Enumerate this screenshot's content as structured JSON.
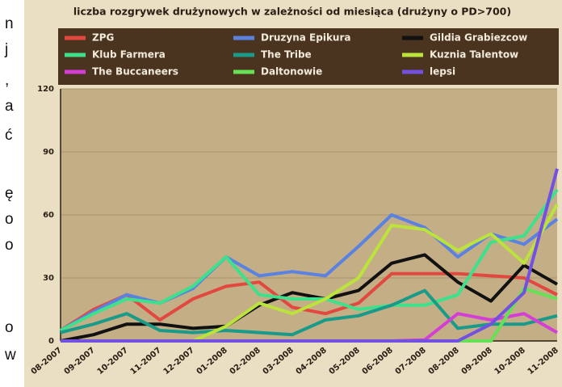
{
  "side_text": [
    "n",
    "j",
    ",",
    "a",
    "ć",
    "ę",
    "o",
    "o",
    "o",
    "w"
  ],
  "chart_data": {
    "type": "line",
    "title": "liczba rozgrywek drużynowych w zależności od miesiąca (drużyny o PD>700)",
    "categories": [
      "08-2007",
      "09-2007",
      "10-2007",
      "11-2007",
      "12-2007",
      "01-2008",
      "02-2008",
      "03-2008",
      "04-2008",
      "05-2008",
      "06-2008",
      "07-2008",
      "08-2008",
      "09-2008",
      "10-2008",
      "11-2008"
    ],
    "series": [
      {
        "name": "ZPG",
        "color": "#e2483f",
        "values": [
          5,
          15,
          22,
          10,
          20,
          26,
          28,
          16,
          13,
          18,
          32,
          32,
          32,
          31,
          30,
          22
        ]
      },
      {
        "name": "Druzyna Epikura",
        "color": "#5b82e0",
        "values": [
          5,
          14,
          22,
          18,
          25,
          40,
          31,
          33,
          31,
          45,
          60,
          54,
          40,
          51,
          46,
          58
        ]
      },
      {
        "name": "Gildia Grabiezcow",
        "color": "#111111",
        "values": [
          0,
          3,
          8,
          8,
          6,
          7,
          17,
          23,
          20,
          24,
          37,
          41,
          28,
          19,
          36,
          27
        ]
      },
      {
        "name": "Klub Farmera",
        "color": "#3fe08c",
        "values": [
          5,
          13,
          20,
          18,
          26,
          40,
          22,
          20,
          20,
          15,
          17,
          17,
          22,
          47,
          50,
          72
        ]
      },
      {
        "name": "The Tribe",
        "color": "#1a9a88",
        "values": [
          4,
          8,
          13,
          5,
          4,
          5,
          4,
          3,
          10,
          12,
          17,
          24,
          6,
          8,
          8,
          12
        ]
      },
      {
        "name": "Kuznia Talentow",
        "color": "#bce23c",
        "values": [
          0,
          0,
          0,
          0,
          0,
          7,
          18,
          13,
          20,
          30,
          55,
          53,
          43,
          51,
          37,
          65
        ]
      },
      {
        "name": "The Buccaneers",
        "color": "#d53ed5",
        "values": [
          0,
          0,
          0,
          0,
          0,
          0,
          0,
          0,
          0,
          0,
          0,
          0.5,
          13,
          10,
          13,
          4
        ]
      },
      {
        "name": "Daltonowie",
        "color": "#66e055",
        "values": [
          0,
          0,
          0,
          0,
          0,
          0,
          0,
          0,
          0,
          0,
          0,
          0,
          0,
          0,
          25,
          20
        ]
      },
      {
        "name": "lepsi",
        "color": "#7250e0",
        "values": [
          0,
          0,
          0,
          0,
          0,
          0,
          0,
          0,
          0,
          0,
          0,
          0,
          0,
          8,
          23,
          82
        ]
      }
    ],
    "ylim": [
      0,
      120
    ],
    "yticks": [
      0,
      30,
      60,
      90,
      120
    ],
    "grid": true
  }
}
